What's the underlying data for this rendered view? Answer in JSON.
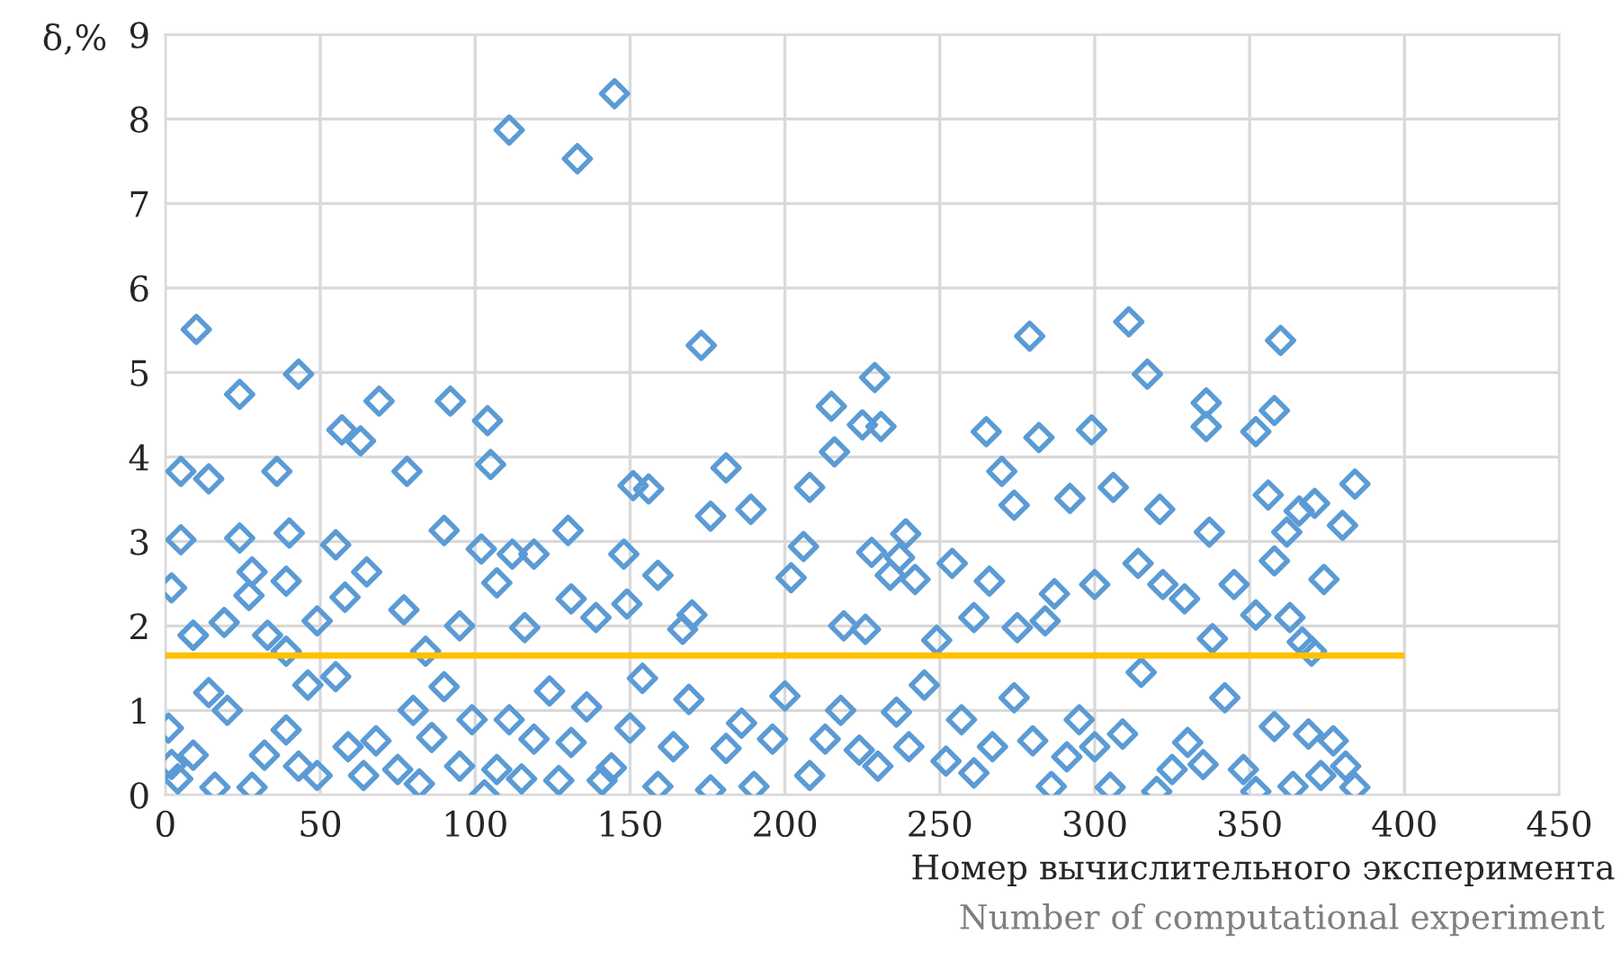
{
  "chart_data": {
    "type": "scatter",
    "ylabel": "δ,%",
    "xlabel": "Номер вычислительного эксперимента",
    "annotations": [
      "Number of computational experiment"
    ],
    "xlim": [
      0,
      450
    ],
    "xticks": [
      0,
      50,
      100,
      150,
      200,
      250,
      300,
      350,
      400,
      450
    ],
    "ylim": [
      0,
      9
    ],
    "yticks": [
      0,
      1,
      2,
      3,
      4,
      5,
      6,
      7,
      8,
      9
    ],
    "grid": true,
    "series": [
      {
        "marker": "diamond",
        "color": "#5b9bd5",
        "x": [
          2,
          1,
          2,
          5,
          5,
          10,
          14,
          9,
          24,
          24,
          43,
          36,
          40,
          39,
          28,
          55,
          57,
          63,
          69,
          78,
          92,
          90,
          104,
          105,
          102,
          111,
          133,
          145,
          112,
          119,
          130,
          148,
          151,
          156,
          173,
          181,
          176,
          189,
          208,
          215,
          216,
          229,
          225,
          231,
          239,
          228,
          234,
          242,
          279,
          265,
          282,
          270,
          274,
          292,
          299,
          306,
          311,
          317,
          321,
          336,
          336,
          337,
          352,
          358,
          360,
          356,
          371,
          384,
          358,
          374,
          380,
          366,
          362,
          4,
          9,
          14,
          16,
          20,
          28,
          32,
          39,
          43,
          46,
          49,
          55,
          59,
          64,
          68,
          75,
          80,
          82,
          86,
          90,
          95,
          99,
          103,
          107,
          111,
          115,
          119,
          124,
          127,
          131,
          136,
          141,
          144,
          150,
          154,
          159,
          164,
          169,
          176,
          181,
          186,
          190,
          196,
          200,
          208,
          213,
          218,
          224,
          230,
          236,
          240,
          245,
          252,
          257,
          261,
          267,
          274,
          280,
          286,
          291,
          295,
          300,
          305,
          309,
          315,
          320,
          325,
          330,
          335,
          342,
          348,
          352,
          358,
          364,
          369,
          373,
          377,
          381,
          384,
          9,
          19,
          27,
          33,
          39,
          49,
          58,
          65,
          77,
          84,
          95,
          107,
          116,
          131,
          139,
          149,
          159,
          167,
          170,
          202,
          206,
          219,
          226,
          237,
          249,
          254,
          261,
          266,
          275,
          284,
          287,
          300,
          314,
          322,
          329,
          338,
          345,
          352,
          363,
          367,
          370
        ],
        "values": [
          2.45,
          0.79,
          0.36,
          3.83,
          3.02,
          5.51,
          3.74,
          1.89,
          4.74,
          3.04,
          4.98,
          3.83,
          3.1,
          2.53,
          2.64,
          2.96,
          4.32,
          4.19,
          4.66,
          3.83,
          4.66,
          3.13,
          4.43,
          3.91,
          2.91,
          7.87,
          7.53,
          8.3,
          2.85,
          2.85,
          3.13,
          2.85,
          3.66,
          3.62,
          5.32,
          3.87,
          3.3,
          3.38,
          3.64,
          4.6,
          4.06,
          4.94,
          4.38,
          4.36,
          3.09,
          2.87,
          2.6,
          2.55,
          5.43,
          4.3,
          4.23,
          3.83,
          3.43,
          3.51,
          4.32,
          3.64,
          5.6,
          4.98,
          3.38,
          4.36,
          4.64,
          3.11,
          4.3,
          4.55,
          5.38,
          3.55,
          3.45,
          3.68,
          2.77,
          2.55,
          3.19,
          3.36,
          3.11,
          0.19,
          0.47,
          1.21,
          0.09,
          1.0,
          0.09,
          0.47,
          0.77,
          0.34,
          1.3,
          0.23,
          1.4,
          0.57,
          0.23,
          0.64,
          0.3,
          1.0,
          0.13,
          0.68,
          1.28,
          0.34,
          0.89,
          0.0,
          0.3,
          0.89,
          0.19,
          0.66,
          1.23,
          0.17,
          0.62,
          1.04,
          0.17,
          0.32,
          0.79,
          1.38,
          0.1,
          0.57,
          1.13,
          0.06,
          0.55,
          0.85,
          0.1,
          0.66,
          1.17,
          0.23,
          0.66,
          1.0,
          0.53,
          0.34,
          0.98,
          0.57,
          1.3,
          0.4,
          0.89,
          0.26,
          0.57,
          1.15,
          0.64,
          0.1,
          0.45,
          0.89,
          0.57,
          0.09,
          0.72,
          1.45,
          0.04,
          0.3,
          0.62,
          0.36,
          1.15,
          0.3,
          0.04,
          0.81,
          0.1,
          0.72,
          0.23,
          0.64,
          0.34,
          0.09,
          1.89,
          2.04,
          2.36,
          1.89,
          1.7,
          2.06,
          2.34,
          2.64,
          2.19,
          1.7,
          2.0,
          2.51,
          1.98,
          2.32,
          2.1,
          2.26,
          2.6,
          1.96,
          2.13,
          2.57,
          2.94,
          2.0,
          1.96,
          2.81,
          1.83,
          2.74,
          2.1,
          2.53,
          1.98,
          2.06,
          2.38,
          2.49,
          2.74,
          2.49,
          2.32,
          1.85,
          2.49,
          2.13,
          2.1,
          1.81,
          1.7
        ]
      },
      {
        "type": "line",
        "color": "#ffc000",
        "x": [
          0,
          400
        ],
        "values": [
          1.65,
          1.65
        ]
      }
    ]
  }
}
